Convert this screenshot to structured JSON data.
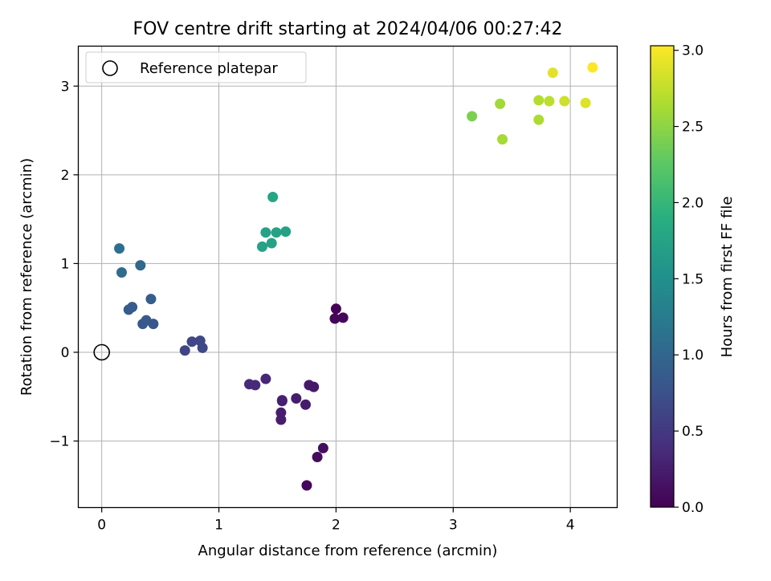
{
  "chart_data": {
    "type": "scatter",
    "title": "FOV centre drift starting at 2024/04/06 00:27:42",
    "xlabel": "Angular distance from reference (arcmin)",
    "ylabel": "Rotation from reference (arcmin)",
    "xlim": [
      -0.2,
      4.4
    ],
    "ylim": [
      -1.75,
      3.45
    ],
    "xticks": [
      0,
      1,
      2,
      3,
      4
    ],
    "xtick_labels": [
      "0",
      "1",
      "2",
      "3",
      "4"
    ],
    "yticks": [
      -1,
      0,
      1,
      2,
      3
    ],
    "ytick_labels": [
      "−1",
      "0",
      "1",
      "2",
      "3"
    ],
    "grid": true,
    "legend": {
      "position": "top-left",
      "entries": [
        "Reference platepar"
      ]
    },
    "reference_point": {
      "x": 0,
      "y": 0,
      "name": "Reference platepar",
      "marker": "open-circle",
      "color": "#000000"
    },
    "colorbar": {
      "label": "Hours from first FF file",
      "min": 0.0,
      "max": 3.03,
      "ticks": [
        0.0,
        0.5,
        1.0,
        1.5,
        2.0,
        2.5,
        3.0
      ],
      "tick_labels": [
        "0.0",
        "0.5",
        "1.0",
        "1.5",
        "2.0",
        "2.5",
        "3.0"
      ],
      "colormap": "viridis"
    },
    "points": [
      {
        "x": 1.75,
        "y": -1.5,
        "c": 0.05
      },
      {
        "x": 1.84,
        "y": -1.18,
        "c": 0.1
      },
      {
        "x": 1.89,
        "y": -1.08,
        "c": 0.12
      },
      {
        "x": 2.0,
        "y": 0.49,
        "c": 0.02
      },
      {
        "x": 1.99,
        "y": 0.38,
        "c": 0.04
      },
      {
        "x": 2.06,
        "y": 0.39,
        "c": 0.06
      },
      {
        "x": 1.53,
        "y": -0.76,
        "c": 0.25
      },
      {
        "x": 1.53,
        "y": -0.68,
        "c": 0.25
      },
      {
        "x": 1.54,
        "y": -0.55,
        "c": 0.27
      },
      {
        "x": 1.54,
        "y": -0.54,
        "c": 0.27
      },
      {
        "x": 1.66,
        "y": -0.52,
        "c": 0.24
      },
      {
        "x": 1.74,
        "y": -0.59,
        "c": 0.22
      },
      {
        "x": 1.77,
        "y": -0.37,
        "c": 0.21
      },
      {
        "x": 1.81,
        "y": -0.39,
        "c": 0.2
      },
      {
        "x": 1.4,
        "y": -0.3,
        "c": 0.33
      },
      {
        "x": 1.26,
        "y": -0.36,
        "c": 0.36
      },
      {
        "x": 1.31,
        "y": -0.37,
        "c": 0.36
      },
      {
        "x": 0.71,
        "y": 0.02,
        "c": 0.62
      },
      {
        "x": 0.77,
        "y": 0.12,
        "c": 0.64
      },
      {
        "x": 0.84,
        "y": 0.13,
        "c": 0.66
      },
      {
        "x": 0.86,
        "y": 0.05,
        "c": 0.66
      },
      {
        "x": 0.35,
        "y": 0.32,
        "c": 0.82
      },
      {
        "x": 0.38,
        "y": 0.36,
        "c": 0.84
      },
      {
        "x": 0.44,
        "y": 0.32,
        "c": 0.82
      },
      {
        "x": 0.23,
        "y": 0.48,
        "c": 0.86
      },
      {
        "x": 0.26,
        "y": 0.51,
        "c": 0.86
      },
      {
        "x": 0.42,
        "y": 0.6,
        "c": 0.9
      },
      {
        "x": 0.33,
        "y": 0.98,
        "c": 1.02
      },
      {
        "x": 0.17,
        "y": 0.9,
        "c": 1.06
      },
      {
        "x": 0.15,
        "y": 1.17,
        "c": 1.1
      },
      {
        "x": 1.37,
        "y": 1.19,
        "c": 1.72
      },
      {
        "x": 1.4,
        "y": 1.35,
        "c": 1.72
      },
      {
        "x": 1.45,
        "y": 1.23,
        "c": 1.74
      },
      {
        "x": 1.49,
        "y": 1.35,
        "c": 1.74
      },
      {
        "x": 1.57,
        "y": 1.36,
        "c": 1.72
      },
      {
        "x": 1.46,
        "y": 1.75,
        "c": 1.78
      },
      {
        "x": 3.16,
        "y": 2.66,
        "c": 2.42
      },
      {
        "x": 3.4,
        "y": 2.8,
        "c": 2.6
      },
      {
        "x": 3.42,
        "y": 2.4,
        "c": 2.62
      },
      {
        "x": 3.73,
        "y": 2.62,
        "c": 2.65
      },
      {
        "x": 3.73,
        "y": 2.84,
        "c": 2.68
      },
      {
        "x": 3.82,
        "y": 2.83,
        "c": 2.72
      },
      {
        "x": 3.95,
        "y": 2.83,
        "c": 2.8
      },
      {
        "x": 4.13,
        "y": 2.81,
        "c": 2.88
      },
      {
        "x": 3.85,
        "y": 3.15,
        "c": 2.9
      },
      {
        "x": 4.19,
        "y": 3.21,
        "c": 3.02
      }
    ]
  }
}
